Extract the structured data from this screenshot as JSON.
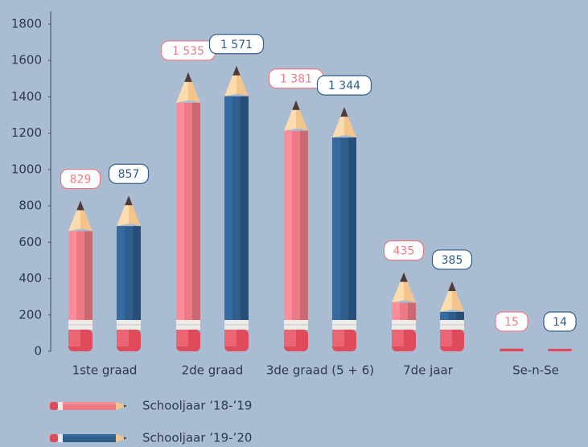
{
  "chart_data": {
    "type": "bar",
    "categories": [
      "1ste graad",
      "2de graad",
      "3de graad (5 + 6)",
      "7de jaar",
      "Se-n-Se"
    ],
    "series": [
      {
        "name": "Schooljaar ’18-’19",
        "color": "#ec7b85",
        "values": [
          829,
          1535,
          1381,
          435,
          15
        ],
        "value_labels": [
          "829",
          "1 535",
          "1 381",
          "435",
          "15"
        ]
      },
      {
        "name": "Schooljaar ’19-’20",
        "color": "#2f5d8c",
        "values": [
          857,
          1571,
          1344,
          385,
          14
        ],
        "value_labels": [
          "857",
          "1 571",
          "1 344",
          "385",
          "14"
        ]
      }
    ],
    "ylim": [
      0,
      1800
    ],
    "yticks": [
      0,
      200,
      400,
      600,
      800,
      1000,
      1200,
      1400,
      1600,
      1800
    ]
  }
}
